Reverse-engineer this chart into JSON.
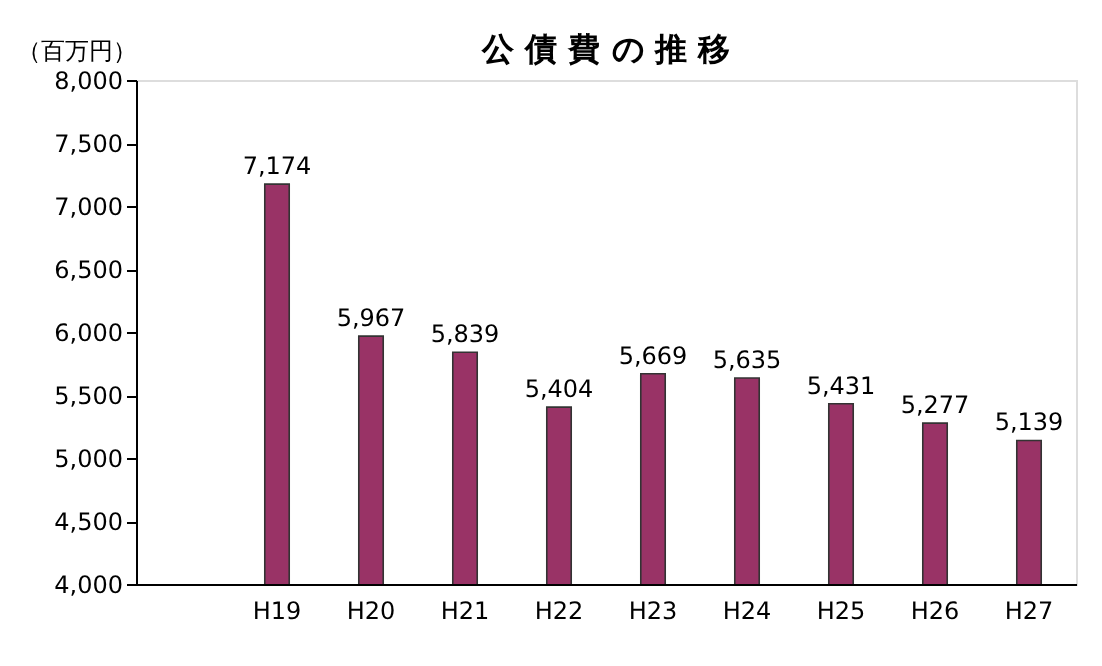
{
  "chart_data": {
    "type": "bar",
    "title": "公 債 費 の 推 移",
    "ylabel": "（百万円）",
    "categories": [
      null,
      "H19",
      "H20",
      "H21",
      "H22",
      "H23",
      "H24",
      "H25",
      "H26",
      "H27"
    ],
    "values": [
      null,
      7174,
      5967,
      5839,
      5404,
      5669,
      5635,
      5431,
      5277,
      5139
    ],
    "value_labels": [
      null,
      "7,174",
      "5,967",
      "5,839",
      "5,404",
      "5,669",
      "5,635",
      "5,431",
      "5,277",
      "5,139"
    ],
    "color": "#993366",
    "ylim": [
      4000,
      8000
    ],
    "yticks": [
      {
        "value": 4000,
        "label": "4,000"
      },
      {
        "value": 4500,
        "label": "4,500"
      },
      {
        "value": 5000,
        "label": "5,000"
      },
      {
        "value": 5500,
        "label": "5,500"
      },
      {
        "value": 6000,
        "label": "6,000"
      },
      {
        "value": 6500,
        "label": "6,500"
      },
      {
        "value": 7000,
        "label": "7,000"
      },
      {
        "value": 7500,
        "label": "7,500"
      },
      {
        "value": 8000,
        "label": "8,000"
      }
    ],
    "grid": false
  }
}
